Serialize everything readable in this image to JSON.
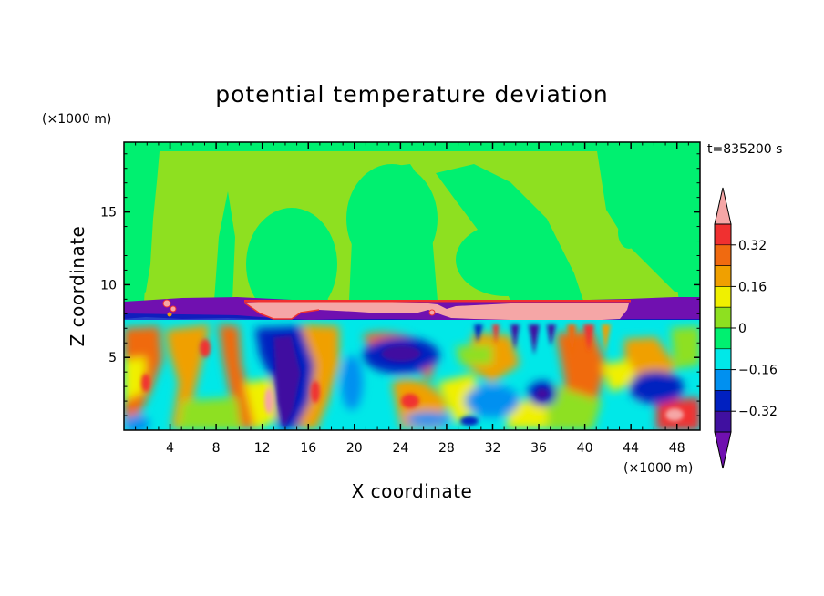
{
  "chart_data": {
    "type": "heatmap",
    "title": "potential temperature deviation",
    "xlabel": "X coordinate",
    "ylabel": "Z coordinate",
    "x_unit": "(×1000 m)",
    "y_unit": "(×1000 m)",
    "time_label": "t=835200 s",
    "xlim": [
      0,
      50
    ],
    "ylim": [
      0,
      19.8
    ],
    "x_ticks": [
      4,
      8,
      12,
      16,
      20,
      24,
      28,
      32,
      36,
      40,
      44,
      48
    ],
    "y_ticks": [
      5,
      10,
      15
    ],
    "colorbar": {
      "levels": [
        -0.4,
        -0.32,
        -0.24,
        -0.16,
        -0.08,
        0,
        0.08,
        0.16,
        0.24,
        0.32,
        0.4
      ],
      "labels": [
        "0.32",
        "0.16",
        "0",
        "−0.16",
        "−0.32"
      ],
      "label_values": [
        0.32,
        0.16,
        0,
        -0.16,
        -0.32
      ],
      "colors_top_to_bottom": [
        "#f5a6a6",
        "#f03030",
        "#f06a10",
        "#f0a000",
        "#f0f000",
        "#8ee020",
        "#00f070",
        "#00e8e8",
        "#0090f0",
        "#0020c0",
        "#4010a0",
        "#7010b0"
      ],
      "extend": "both"
    },
    "regions": [
      {
        "name": "upper-troposphere-zero-band",
        "z_range": [
          9.2,
          19.8
        ],
        "value": 0.0
      },
      {
        "name": "upper-troposphere-negative-patches",
        "z_range": [
          10,
          19.8
        ],
        "value": -0.04
      },
      {
        "name": "tropopause-cold-layer",
        "z_range": [
          7.8,
          9.2
        ],
        "value": -0.45
      },
      {
        "name": "tropopause-warm-cap",
        "x_range": [
          10.5,
          43.5
        ],
        "z_range": [
          7.8,
          9.0
        ],
        "value": 0.45
      },
      {
        "name": "lower-troposphere-turbulence",
        "z_range": [
          0,
          7.8
        ],
        "value_range": [
          -0.45,
          0.45
        ]
      }
    ]
  }
}
